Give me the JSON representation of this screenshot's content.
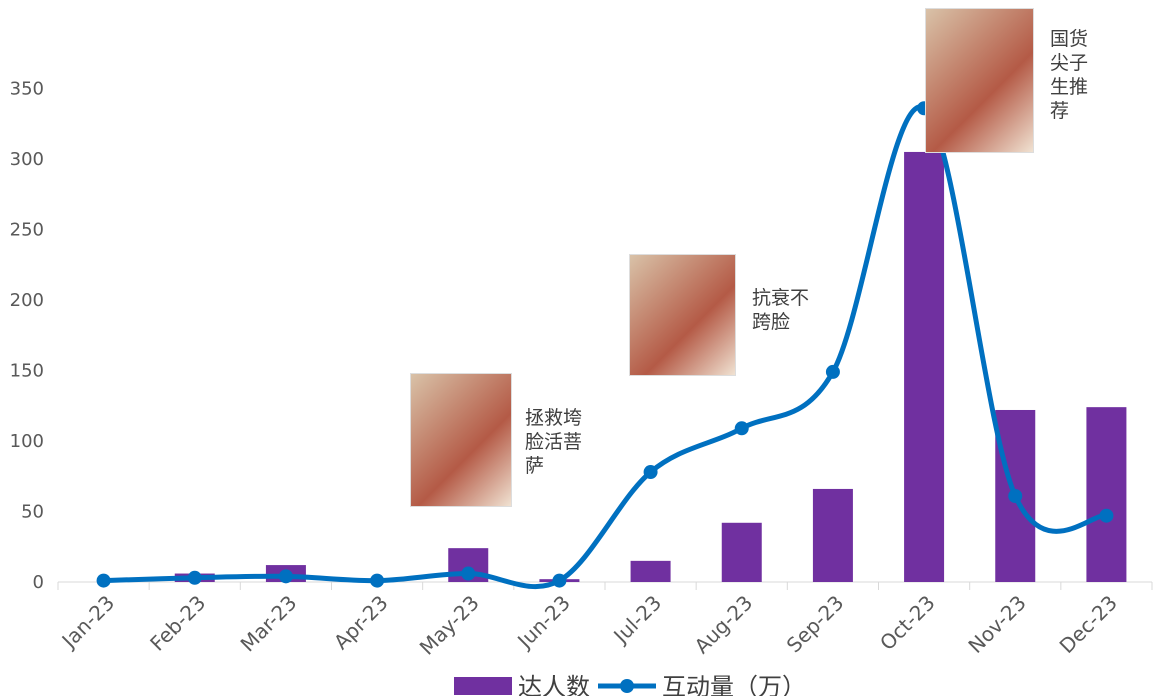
{
  "chart_data": {
    "type": "bar-line",
    "categories": [
      "Jan-23",
      "Feb-23",
      "Mar-23",
      "Apr-23",
      "May-23",
      "Jun-23",
      "Jul-23",
      "Aug-23",
      "Sep-23",
      "Oct-23",
      "Nov-23",
      "Dec-23"
    ],
    "series": [
      {
        "name": "达人数",
        "type": "bar",
        "color": "#7030a0",
        "values": [
          0,
          6,
          12,
          0,
          24,
          2,
          15,
          42,
          66,
          305,
          122,
          124
        ]
      },
      {
        "name": "互动量（万）",
        "type": "line",
        "color": "#0070c0",
        "values": [
          1,
          3,
          4,
          1,
          6,
          1,
          78,
          109,
          149,
          336,
          61,
          47
        ]
      }
    ],
    "ylim": [
      0,
      400
    ],
    "yticks": [
      0,
      50,
      100,
      150,
      200,
      250,
      300,
      350
    ],
    "annotations": [
      {
        "category": 4,
        "text": "拯救垮脸活菩萨"
      },
      {
        "category": 6,
        "text": "抗衰不跨脸"
      },
      {
        "category": 9,
        "text": "国货尖子生推荐"
      }
    ],
    "legend": "bottom"
  }
}
